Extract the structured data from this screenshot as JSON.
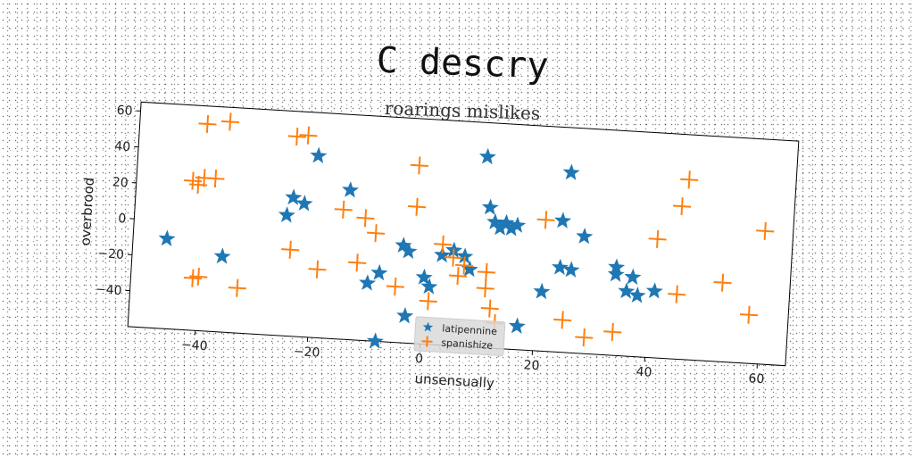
{
  "chart_data": {
    "type": "scatter",
    "title": "C descry",
    "subtitle": "roarings mislikes",
    "xlabel": "unsensually",
    "ylabel": "overbrood",
    "xlim": [
      -52,
      65
    ],
    "ylim": [
      -60,
      65
    ],
    "xticks": [
      -40,
      -20,
      0,
      20,
      40,
      60
    ],
    "yticks": [
      -40,
      -20,
      0,
      20,
      40,
      60
    ],
    "legend_position": "bottom-center",
    "series": [
      {
        "name": "latipennine",
        "marker": "star",
        "color": "#1f77b4",
        "points": [
          [
            -46,
            -10
          ],
          [
            -36,
            -18
          ],
          [
            -25,
            7
          ],
          [
            -24,
            17
          ],
          [
            -22,
            14
          ],
          [
            -20,
            41
          ],
          [
            -14,
            23
          ],
          [
            -10,
            -28
          ],
          [
            -8,
            -22
          ],
          [
            -8,
            -60
          ],
          [
            -4,
            -6
          ],
          [
            -3,
            -9
          ],
          [
            -3,
            -45
          ],
          [
            0,
            -23
          ],
          [
            1,
            -28
          ],
          [
            3,
            -10
          ],
          [
            5,
            -7
          ],
          [
            7,
            -10
          ],
          [
            8,
            -17
          ],
          [
            10,
            46
          ],
          [
            11,
            18
          ],
          [
            12,
            10
          ],
          [
            13,
            7
          ],
          [
            14,
            10
          ],
          [
            15,
            7
          ],
          [
            16,
            9
          ],
          [
            17,
            -47
          ],
          [
            21,
            -27
          ],
          [
            24,
            13
          ],
          [
            24,
            -13
          ],
          [
            25,
            40
          ],
          [
            26,
            -14
          ],
          [
            28,
            5
          ],
          [
            34,
            -11
          ],
          [
            34,
            -15
          ],
          [
            36,
            -24
          ],
          [
            37,
            -16
          ],
          [
            38,
            -26
          ],
          [
            41,
            -23
          ]
        ]
      },
      {
        "name": "spanishize",
        "marker": "plus",
        "color": "#ff7f0e",
        "points": [
          [
            -40,
            55
          ],
          [
            -36,
            57
          ],
          [
            -42,
            23
          ],
          [
            -41,
            21
          ],
          [
            -40,
            25
          ],
          [
            -38,
            25
          ],
          [
            -40,
            -30
          ],
          [
            -41,
            -31
          ],
          [
            -33,
            -35
          ],
          [
            -24,
            51
          ],
          [
            -22,
            52
          ],
          [
            -24,
            -12
          ],
          [
            -19,
            -22
          ],
          [
            -15,
            12
          ],
          [
            -11,
            8
          ],
          [
            -12,
            -17
          ],
          [
            -9,
            0
          ],
          [
            -2,
            39
          ],
          [
            -2,
            16
          ],
          [
            -5,
            -29
          ],
          [
            1,
            -36
          ],
          [
            3,
            -4
          ],
          [
            5,
            -11
          ],
          [
            6,
            -21
          ],
          [
            7,
            -15
          ],
          [
            11,
            -18
          ],
          [
            11,
            -27
          ],
          [
            12,
            -38
          ],
          [
            13,
            -46
          ],
          [
            21,
            13
          ],
          [
            25,
            -42
          ],
          [
            29,
            -51
          ],
          [
            34,
            -47
          ],
          [
            41,
            6
          ],
          [
            45,
            25
          ],
          [
            46,
            40
          ],
          [
            45,
            -24
          ],
          [
            53,
            -16
          ],
          [
            58,
            -33
          ],
          [
            60,
            14
          ]
        ]
      }
    ]
  }
}
